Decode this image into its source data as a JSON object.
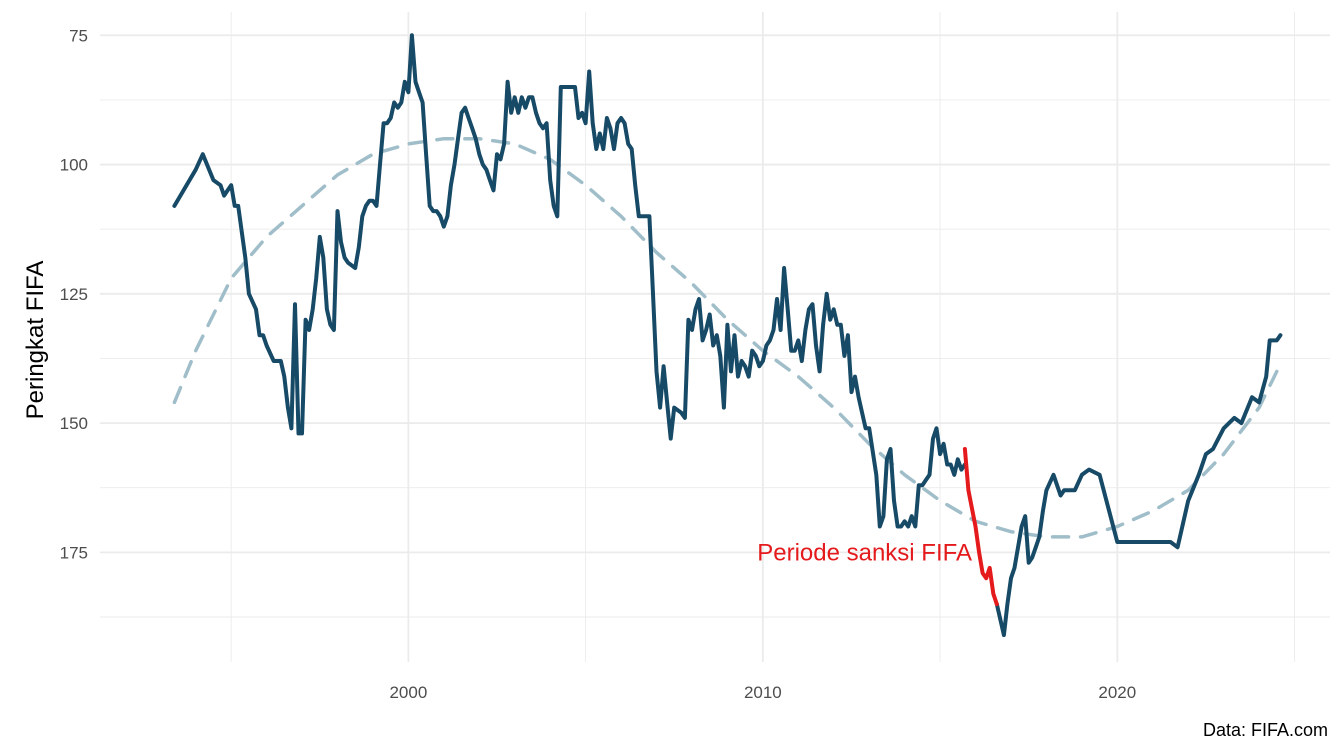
{
  "chart_data": {
    "type": "line",
    "title": "",
    "xlabel": "",
    "ylabel": "Peringkat FIFA",
    "y_reversed": true,
    "xlim": [
      1991.3,
      2026.0
    ],
    "ylim": [
      196.2,
      70.5
    ],
    "x_ticks": [
      2000,
      2010,
      2020
    ],
    "x_minor_ticks": [
      1995,
      2005,
      2015,
      2025
    ],
    "y_ticks": [
      75,
      100,
      125,
      150,
      175
    ],
    "y_minor_ticks": [
      87.5,
      112.5,
      137.5,
      162.5,
      187.5
    ],
    "grid": true,
    "caption": "Data: FIFA.com",
    "annotation": {
      "text": "Periode sanksi FIFA",
      "x": 2015.9,
      "y": 176,
      "color": "#e41a1c"
    },
    "colors": {
      "main": "#174a66",
      "highlight": "#e41a1c",
      "trend": "#a0bec9",
      "grid": "#ebebeb"
    },
    "series": [
      {
        "kind": "main",
        "points": [
          [
            1993.4,
            108
          ],
          [
            1994.0,
            101
          ],
          [
            1994.2,
            98
          ],
          [
            1994.5,
            103
          ],
          [
            1994.7,
            104
          ],
          [
            1994.8,
            106
          ],
          [
            1994.9,
            105
          ],
          [
            1995.0,
            104
          ],
          [
            1995.1,
            108
          ],
          [
            1995.2,
            108
          ],
          [
            1995.4,
            118
          ],
          [
            1995.5,
            125
          ],
          [
            1995.7,
            128
          ],
          [
            1995.8,
            133
          ],
          [
            1995.9,
            133
          ],
          [
            1996.0,
            135
          ],
          [
            1996.2,
            138
          ],
          [
            1996.4,
            138
          ],
          [
            1996.5,
            141
          ],
          [
            1996.6,
            147
          ],
          [
            1996.7,
            151
          ],
          [
            1996.8,
            127
          ],
          [
            1996.9,
            152
          ],
          [
            1997.0,
            152
          ],
          [
            1997.1,
            130
          ],
          [
            1997.2,
            132
          ],
          [
            1997.3,
            128
          ],
          [
            1997.4,
            122
          ],
          [
            1997.5,
            114
          ],
          [
            1997.6,
            118
          ],
          [
            1997.7,
            128
          ],
          [
            1997.8,
            131
          ],
          [
            1997.9,
            132
          ],
          [
            1998.0,
            109
          ],
          [
            1998.1,
            115
          ],
          [
            1998.2,
            118
          ],
          [
            1998.3,
            119
          ],
          [
            1998.5,
            120
          ],
          [
            1998.6,
            116
          ],
          [
            1998.7,
            110
          ],
          [
            1998.8,
            108
          ],
          [
            1998.9,
            107
          ],
          [
            1999.0,
            107
          ],
          [
            1999.1,
            108
          ],
          [
            1999.2,
            100
          ],
          [
            1999.3,
            92
          ],
          [
            1999.4,
            92
          ],
          [
            1999.5,
            91
          ],
          [
            1999.6,
            88
          ],
          [
            1999.7,
            89
          ],
          [
            1999.8,
            88
          ],
          [
            1999.9,
            84
          ],
          [
            2000.0,
            86
          ],
          [
            2000.1,
            75
          ],
          [
            2000.2,
            84
          ],
          [
            2000.3,
            86
          ],
          [
            2000.4,
            88
          ],
          [
            2000.5,
            98
          ],
          [
            2000.6,
            108
          ],
          [
            2000.7,
            109
          ],
          [
            2000.8,
            109
          ],
          [
            2000.9,
            110
          ],
          [
            2001.0,
            112
          ],
          [
            2001.1,
            110
          ],
          [
            2001.2,
            104
          ],
          [
            2001.3,
            100
          ],
          [
            2001.4,
            95
          ],
          [
            2001.5,
            90
          ],
          [
            2001.6,
            89
          ],
          [
            2001.7,
            91
          ],
          [
            2001.8,
            93
          ],
          [
            2001.9,
            95
          ],
          [
            2002.0,
            98
          ],
          [
            2002.1,
            100
          ],
          [
            2002.2,
            101
          ],
          [
            2002.3,
            103
          ],
          [
            2002.4,
            105
          ],
          [
            2002.5,
            98
          ],
          [
            2002.6,
            99
          ],
          [
            2002.7,
            96
          ],
          [
            2002.8,
            84
          ],
          [
            2002.9,
            90
          ],
          [
            2003.0,
            87
          ],
          [
            2003.1,
            90
          ],
          [
            2003.2,
            87
          ],
          [
            2003.3,
            89
          ],
          [
            2003.4,
            87
          ],
          [
            2003.5,
            87
          ],
          [
            2003.6,
            90
          ],
          [
            2003.7,
            92
          ],
          [
            2003.8,
            93
          ],
          [
            2003.9,
            92
          ],
          [
            2004.0,
            103
          ],
          [
            2004.1,
            108
          ],
          [
            2004.2,
            110
          ],
          [
            2004.3,
            85
          ],
          [
            2004.5,
            85
          ],
          [
            2004.7,
            85
          ],
          [
            2004.8,
            91
          ],
          [
            2004.9,
            90
          ],
          [
            2005.0,
            92
          ],
          [
            2005.1,
            82
          ],
          [
            2005.2,
            92
          ],
          [
            2005.3,
            97
          ],
          [
            2005.4,
            94
          ],
          [
            2005.5,
            97
          ],
          [
            2005.6,
            91
          ],
          [
            2005.7,
            93
          ],
          [
            2005.8,
            97
          ],
          [
            2005.9,
            92
          ],
          [
            2006.0,
            91
          ],
          [
            2006.1,
            92
          ],
          [
            2006.2,
            96
          ],
          [
            2006.3,
            97
          ],
          [
            2006.4,
            104
          ],
          [
            2006.5,
            110
          ],
          [
            2006.8,
            110
          ],
          [
            2006.9,
            125
          ],
          [
            2007.0,
            140
          ],
          [
            2007.1,
            147
          ],
          [
            2007.2,
            139
          ],
          [
            2007.3,
            146
          ],
          [
            2007.4,
            153
          ],
          [
            2007.5,
            147
          ],
          [
            2007.7,
            148
          ],
          [
            2007.8,
            149
          ],
          [
            2007.9,
            130
          ],
          [
            2008.0,
            132
          ],
          [
            2008.1,
            128
          ],
          [
            2008.2,
            126
          ],
          [
            2008.3,
            134
          ],
          [
            2008.4,
            132
          ],
          [
            2008.5,
            129
          ],
          [
            2008.6,
            135
          ],
          [
            2008.7,
            133
          ],
          [
            2008.8,
            137
          ],
          [
            2008.9,
            147
          ],
          [
            2009.0,
            131
          ],
          [
            2009.1,
            140
          ],
          [
            2009.2,
            133
          ],
          [
            2009.3,
            141
          ],
          [
            2009.4,
            138
          ],
          [
            2009.5,
            139
          ],
          [
            2009.6,
            141
          ],
          [
            2009.7,
            136
          ],
          [
            2009.8,
            137
          ],
          [
            2009.9,
            139
          ],
          [
            2010.0,
            138
          ],
          [
            2010.1,
            135
          ],
          [
            2010.2,
            134
          ],
          [
            2010.3,
            132
          ],
          [
            2010.4,
            126
          ],
          [
            2010.5,
            132
          ],
          [
            2010.6,
            120
          ],
          [
            2010.7,
            128
          ],
          [
            2010.8,
            136
          ],
          [
            2010.9,
            136
          ],
          [
            2011.0,
            134
          ],
          [
            2011.1,
            138
          ],
          [
            2011.2,
            132
          ],
          [
            2011.3,
            128
          ],
          [
            2011.4,
            127
          ],
          [
            2011.5,
            135
          ],
          [
            2011.6,
            140
          ],
          [
            2011.7,
            131
          ],
          [
            2011.8,
            125
          ],
          [
            2011.9,
            130
          ],
          [
            2012.0,
            128
          ],
          [
            2012.1,
            131
          ],
          [
            2012.2,
            131
          ],
          [
            2012.3,
            137
          ],
          [
            2012.4,
            133
          ],
          [
            2012.5,
            144
          ],
          [
            2012.6,
            141
          ],
          [
            2012.7,
            145
          ],
          [
            2012.8,
            148
          ],
          [
            2012.9,
            151
          ],
          [
            2013.0,
            151
          ],
          [
            2013.2,
            160
          ],
          [
            2013.3,
            170
          ],
          [
            2013.4,
            168
          ],
          [
            2013.5,
            157
          ],
          [
            2013.6,
            155
          ],
          [
            2013.7,
            165
          ],
          [
            2013.8,
            170
          ],
          [
            2013.9,
            170
          ],
          [
            2014.0,
            169
          ],
          [
            2014.1,
            170
          ],
          [
            2014.2,
            168
          ],
          [
            2014.3,
            170
          ],
          [
            2014.4,
            162
          ],
          [
            2014.5,
            162
          ],
          [
            2014.6,
            161
          ],
          [
            2014.7,
            160
          ],
          [
            2014.8,
            153
          ],
          [
            2014.9,
            151
          ],
          [
            2015.0,
            156
          ],
          [
            2015.1,
            154
          ],
          [
            2015.2,
            158
          ],
          [
            2015.3,
            158
          ],
          [
            2015.4,
            160
          ],
          [
            2015.5,
            157
          ],
          [
            2015.6,
            159
          ],
          [
            2015.7,
            158
          ]
        ]
      },
      {
        "kind": "highlight",
        "points": [
          [
            2015.7,
            155
          ],
          [
            2015.8,
            163
          ],
          [
            2016.0,
            170
          ],
          [
            2016.1,
            175
          ],
          [
            2016.2,
            179
          ],
          [
            2016.3,
            180
          ],
          [
            2016.4,
            178
          ],
          [
            2016.5,
            183
          ],
          [
            2016.6,
            185
          ]
        ]
      },
      {
        "kind": "main",
        "points": [
          [
            2016.6,
            185
          ],
          [
            2016.8,
            191
          ],
          [
            2016.9,
            185
          ],
          [
            2017.0,
            180
          ],
          [
            2017.1,
            178
          ],
          [
            2017.3,
            170
          ],
          [
            2017.4,
            168
          ],
          [
            2017.5,
            177
          ],
          [
            2017.6,
            176
          ],
          [
            2017.7,
            174
          ],
          [
            2017.8,
            172
          ],
          [
            2017.9,
            167
          ],
          [
            2018.0,
            163
          ],
          [
            2018.2,
            160
          ],
          [
            2018.4,
            164
          ],
          [
            2018.5,
            163
          ],
          [
            2018.7,
            163
          ],
          [
            2018.8,
            163
          ],
          [
            2019.0,
            160
          ],
          [
            2019.2,
            159
          ],
          [
            2019.5,
            160
          ],
          [
            2020.0,
            173
          ],
          [
            2021.5,
            173
          ],
          [
            2021.7,
            174
          ],
          [
            2022.0,
            165
          ],
          [
            2022.3,
            160
          ],
          [
            2022.5,
            156
          ],
          [
            2022.7,
            155
          ],
          [
            2023.0,
            151
          ],
          [
            2023.3,
            149
          ],
          [
            2023.5,
            150
          ],
          [
            2023.8,
            145
          ],
          [
            2024.0,
            146
          ],
          [
            2024.2,
            141
          ],
          [
            2024.3,
            134
          ],
          [
            2024.5,
            134
          ],
          [
            2024.6,
            133
          ]
        ]
      },
      {
        "kind": "trend",
        "points": [
          [
            1993.4,
            146
          ],
          [
            1994.0,
            136
          ],
          [
            1995.0,
            122
          ],
          [
            1996.0,
            114
          ],
          [
            1997.0,
            108
          ],
          [
            1998.0,
            102
          ],
          [
            1999.0,
            98
          ],
          [
            2000.0,
            96
          ],
          [
            2001.0,
            95
          ],
          [
            2002.0,
            95
          ],
          [
            2003.0,
            96
          ],
          [
            2004.0,
            99
          ],
          [
            2005.0,
            104
          ],
          [
            2006.0,
            110
          ],
          [
            2007.0,
            117
          ],
          [
            2008.0,
            123
          ],
          [
            2009.0,
            130
          ],
          [
            2010.0,
            136
          ],
          [
            2011.0,
            141
          ],
          [
            2012.0,
            147
          ],
          [
            2013.0,
            154
          ],
          [
            2014.0,
            160
          ],
          [
            2015.0,
            165
          ],
          [
            2016.0,
            169
          ],
          [
            2017.0,
            171
          ],
          [
            2018.0,
            172
          ],
          [
            2019.0,
            172
          ],
          [
            2020.0,
            170
          ],
          [
            2021.0,
            167
          ],
          [
            2022.0,
            163
          ],
          [
            2023.0,
            156
          ],
          [
            2024.0,
            147
          ],
          [
            2024.5,
            140
          ]
        ]
      }
    ]
  }
}
